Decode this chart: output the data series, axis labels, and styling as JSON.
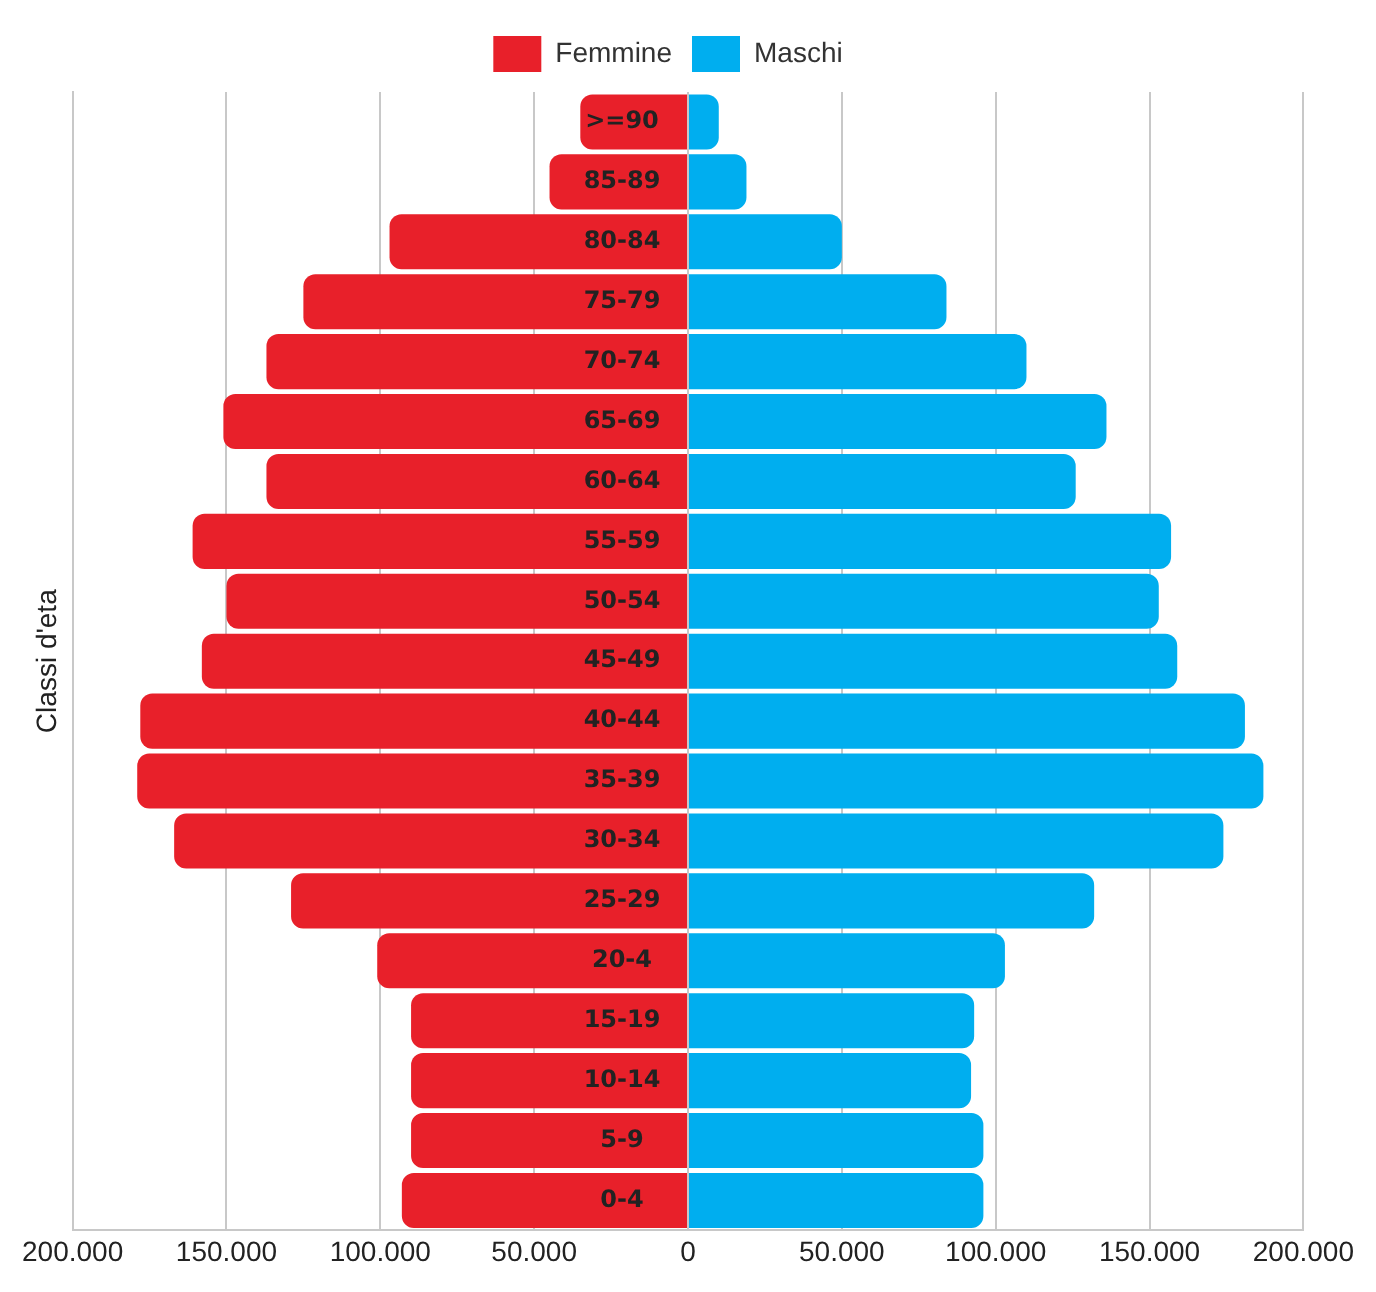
{
  "chart_data": {
    "type": "bar",
    "orientation": "horizontal",
    "ylabel": "Classi d'eta",
    "categories": [
      ">=90",
      "85-89",
      "80-84",
      "75-79",
      "70-74",
      "65-69",
      "60-64",
      "55-59",
      "50-54",
      "45-49",
      "40-44",
      "35-39",
      "30-34",
      "25-29",
      "20-4",
      "15-19",
      "10-14",
      "5-9",
      "0-4"
    ],
    "series": [
      {
        "name": "Femmine",
        "color": "#e8202a",
        "values": [
          -35000,
          -45000,
          -97000,
          -125000,
          -137000,
          -151000,
          -137000,
          -161000,
          -150000,
          -158000,
          -178000,
          -179000,
          -167000,
          -129000,
          -101000,
          -90000,
          -90000,
          -90000,
          -93000
        ]
      },
      {
        "name": "Maschi",
        "color": "#00aeef",
        "values": [
          10000,
          19000,
          50000,
          84000,
          110000,
          136000,
          126000,
          157000,
          153000,
          159000,
          181000,
          187000,
          174000,
          132000,
          103000,
          93000,
          92000,
          96000,
          96000
        ]
      }
    ],
    "xlim": [
      -200000,
      200000
    ],
    "xticks": [
      {
        "value": -200000,
        "label": "200.000"
      },
      {
        "value": -150000,
        "label": "150.000"
      },
      {
        "value": -100000,
        "label": "100.000"
      },
      {
        "value": -50000,
        "label": "50.000"
      },
      0,
      {
        "value": 50000,
        "label": "50.000"
      },
      {
        "value": 100000,
        "label": "100.000"
      },
      {
        "value": 150000,
        "label": "150.000"
      },
      {
        "value": 200000,
        "label": "200.000"
      }
    ],
    "grid": "x",
    "legend": "top",
    "stacked": true
  }
}
